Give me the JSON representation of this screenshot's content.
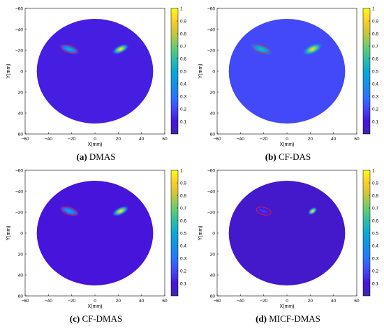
{
  "chart_data": [
    {
      "type": "heatmap",
      "caption_letter": "(a)",
      "caption_text": "DMAS",
      "xlabel": "X(mm)",
      "ylabel": "Y(mm)",
      "xlim": [
        -60,
        60
      ],
      "ylim": [
        -60,
        60
      ],
      "y_reversed": true,
      "xticks": [
        -60,
        -40,
        -20,
        0,
        20,
        40,
        60
      ],
      "yticks": [
        -60,
        -40,
        -20,
        0,
        20,
        40,
        60
      ],
      "colorbar": {
        "min": 0,
        "max": 1,
        "ticks": [
          "0.1",
          "0.2",
          "0.3",
          "0.4",
          "0.5",
          "0.6",
          "0.7",
          "0.8",
          "0.9",
          "1"
        ]
      },
      "support": {
        "shape": "circle",
        "center": [
          0,
          0
        ],
        "radius": 50
      },
      "background_level": 0.12,
      "sources": [
        {
          "x": -22,
          "y": -21,
          "peak": 0.55,
          "sx": 6,
          "sy": 2.5,
          "angle": 20
        },
        {
          "x": 22,
          "y": -21,
          "peak": 1.0,
          "sx": 5,
          "sy": 2.5,
          "angle": -25
        }
      ],
      "highlight_ellipse": {
        "x": -22,
        "y": -21,
        "rx": 7,
        "ry": 3.5,
        "angle": 15
      }
    },
    {
      "type": "heatmap",
      "caption_letter": "(b)",
      "caption_text": "CF-DAS",
      "xlabel": "X(mm)",
      "ylabel": "Y(mm)",
      "xlim": [
        -60,
        60
      ],
      "ylim": [
        -60,
        60
      ],
      "y_reversed": true,
      "xticks": [
        -60,
        -40,
        -20,
        0,
        20,
        40,
        60
      ],
      "yticks": [
        -60,
        -40,
        -20,
        0,
        20,
        40,
        60
      ],
      "colorbar": {
        "min": 0,
        "max": 1,
        "ticks": [
          "0.1",
          "0.2",
          "0.3",
          "0.4",
          "0.5",
          "0.6",
          "0.7",
          "0.8",
          "0.9",
          "1"
        ]
      },
      "support": {
        "shape": "circle",
        "center": [
          0,
          0
        ],
        "radius": 50
      },
      "background_level": 0.2,
      "sources": [
        {
          "x": -22,
          "y": -21,
          "peak": 0.6,
          "sx": 7,
          "sy": 3,
          "angle": 20
        },
        {
          "x": 22,
          "y": -21,
          "peak": 0.95,
          "sx": 6,
          "sy": 3,
          "angle": -25
        }
      ],
      "highlight_ellipse": {
        "x": -22,
        "y": -21,
        "rx": 7,
        "ry": 3.5,
        "angle": 15
      }
    },
    {
      "type": "heatmap",
      "caption_letter": "(c)",
      "caption_text": "CF-DMAS",
      "xlabel": "X(mm)",
      "ylabel": "Y(mm)",
      "xlim": [
        -60,
        60
      ],
      "ylim": [
        -60,
        60
      ],
      "y_reversed": true,
      "xticks": [
        -60,
        -40,
        -20,
        0,
        20,
        40,
        60
      ],
      "yticks": [
        -60,
        -40,
        -20,
        0,
        20,
        40,
        60
      ],
      "colorbar": {
        "min": 0,
        "max": 1,
        "ticks": [
          "0.1",
          "0.2",
          "0.3",
          "0.4",
          "0.5",
          "0.6",
          "0.7",
          "0.8",
          "0.9",
          "1"
        ]
      },
      "support": {
        "shape": "circle",
        "center": [
          0,
          0
        ],
        "radius": 50
      },
      "background_level": 0.1,
      "sources": [
        {
          "x": -22,
          "y": -21,
          "peak": 0.5,
          "sx": 6,
          "sy": 2.5,
          "angle": 20
        },
        {
          "x": 22,
          "y": -21,
          "peak": 1.0,
          "sx": 5,
          "sy": 2.5,
          "angle": -25
        }
      ],
      "highlight_ellipse": {
        "x": -22,
        "y": -21,
        "rx": 7,
        "ry": 3.5,
        "angle": 15
      }
    },
    {
      "type": "heatmap",
      "caption_letter": "(d)",
      "caption_text": "MICF-DMAS",
      "xlabel": "X(mm)",
      "ylabel": "Y(mm)",
      "xlim": [
        -60,
        60
      ],
      "ylim": [
        -60,
        60
      ],
      "y_reversed": true,
      "xticks": [
        -60,
        -40,
        -20,
        0,
        20,
        40,
        60
      ],
      "yticks": [
        -60,
        -40,
        -20,
        0,
        20,
        40,
        60
      ],
      "colorbar": {
        "min": 0,
        "max": 1,
        "ticks": [
          "0.1",
          "0.2",
          "0.3",
          "0.4",
          "0.5",
          "0.6",
          "0.7",
          "0.8",
          "0.9",
          "1"
        ]
      },
      "support": {
        "shape": "circle",
        "center": [
          0,
          0
        ],
        "radius": 50
      },
      "background_level": 0.07,
      "sources": [
        {
          "x": -20,
          "y": -21,
          "peak": 0.18,
          "sx": 5,
          "sy": 2,
          "angle": 20
        },
        {
          "x": 22,
          "y": -21,
          "peak": 1.0,
          "sx": 3,
          "sy": 2,
          "angle": -35
        }
      ],
      "highlight_ellipse": {
        "x": -20,
        "y": -21,
        "rx": 6.5,
        "ry": 3.5,
        "angle": 15
      }
    }
  ]
}
